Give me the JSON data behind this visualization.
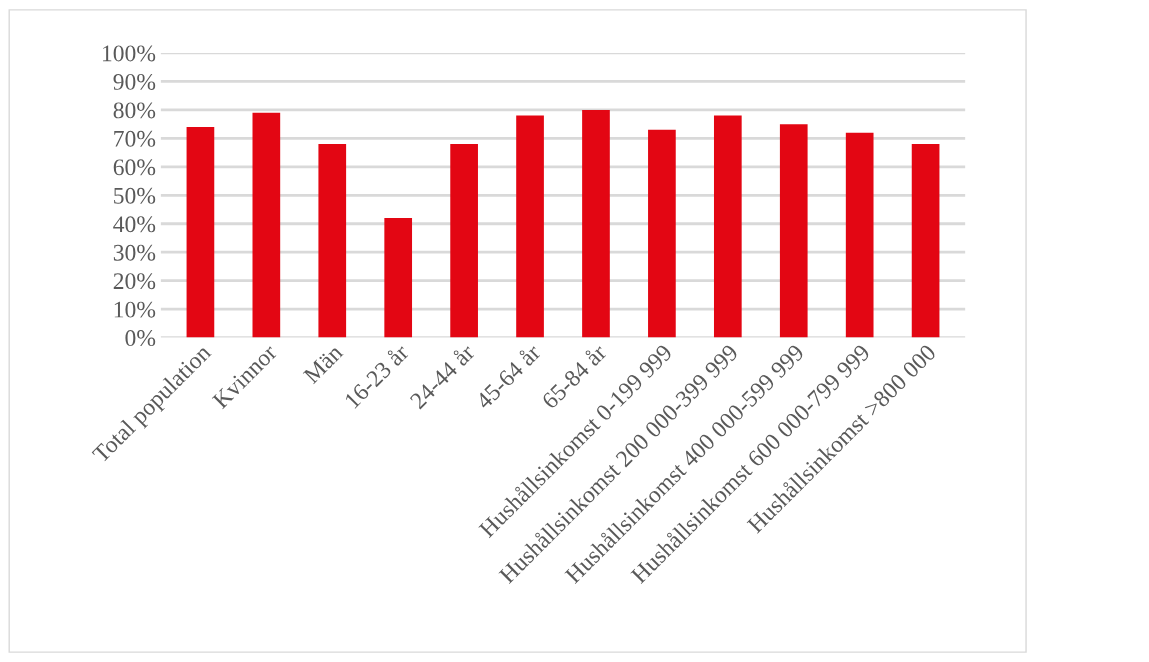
{
  "chart_data": {
    "type": "bar",
    "categories": [
      "Total population",
      "Kvinnor",
      "Män",
      "16-23 år",
      "24-44 år",
      "45-64 år",
      "65-84 år",
      "Hushållsinkomst 0-199 999",
      "Hushållsinkomst 200 000-399 999",
      "Hushållsinkomst 400 000-599 999",
      "Hushållsinkomst 600 000-799 999",
      "Hushållsinkomst >800 000"
    ],
    "values": [
      74,
      79,
      68,
      42,
      68,
      78,
      80,
      73,
      78,
      75,
      72,
      68
    ],
    "color": "#e30613",
    "ylim": [
      0,
      100
    ],
    "yticks": [
      {
        "value": 0,
        "label": "0%"
      },
      {
        "value": 10,
        "label": "10%"
      },
      {
        "value": 20,
        "label": "20%"
      },
      {
        "value": 30,
        "label": "30%"
      },
      {
        "value": 40,
        "label": "40%"
      },
      {
        "value": 50,
        "label": "50%"
      },
      {
        "value": 60,
        "label": "60%"
      },
      {
        "value": 70,
        "label": "70%"
      },
      {
        "value": 80,
        "label": "80%"
      },
      {
        "value": 90,
        "label": "90%"
      },
      {
        "value": 100,
        "label": "100%"
      }
    ],
    "grid": "y",
    "legend": false
  }
}
